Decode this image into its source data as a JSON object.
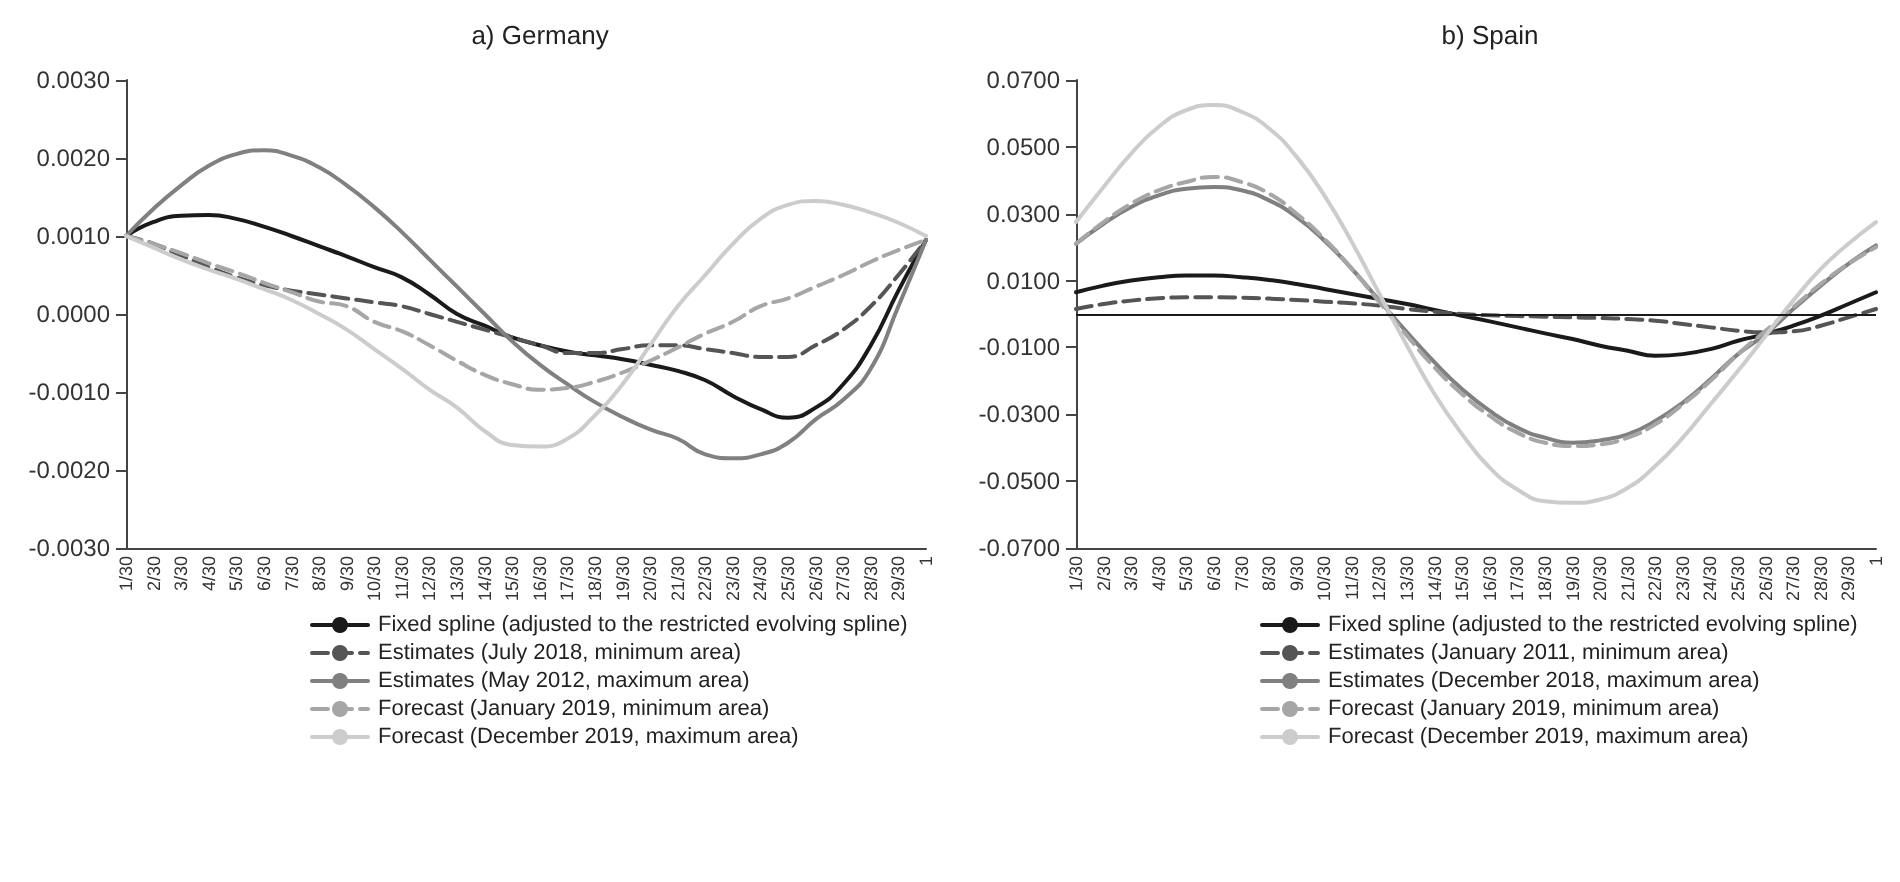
{
  "chart_data": [
    {
      "type": "line",
      "title": "a) Germany",
      "categories": [
        "1/30",
        "2/30",
        "3/30",
        "4/30",
        "5/30",
        "6/30",
        "7/30",
        "8/30",
        "9/30",
        "10/30",
        "11/30",
        "12/30",
        "13/30",
        "14/30",
        "15/30",
        "16/30",
        "17/30",
        "18/30",
        "19/30",
        "20/30",
        "21/30",
        "22/30",
        "23/30",
        "24/30",
        "25/30",
        "26/30",
        "27/30",
        "28/30",
        "29/30",
        "1"
      ],
      "series": [
        {
          "name": "Fixed spline (adjusted to the restricted evolving spline)",
          "color": "#1a1a1a",
          "line_style": "solid",
          "values": [
            0.001,
            0.00118,
            0.00126,
            0.00127,
            0.00122,
            0.00112,
            0.001,
            0.00087,
            0.00074,
            0.0006,
            0.00047,
            0.00025,
            0.0,
            -0.00015,
            -0.0003,
            -0.0004,
            -0.00048,
            -0.00053,
            -0.00058,
            -0.00065,
            -0.00073,
            -0.00085,
            -0.00105,
            -0.00122,
            -0.00133,
            -0.0012,
            -0.0009,
            -0.0004,
            0.0003,
            0.00095
          ]
        },
        {
          "name": "Estimates (July 2018, minimum area)",
          "color": "#555555",
          "line_style": "dashed",
          "values": [
            0.001,
            0.0009,
            0.00075,
            0.0006,
            0.00047,
            0.00037,
            0.0003,
            0.00025,
            0.0002,
            0.00015,
            0.0001,
            0.0,
            -0.0001,
            -0.0002,
            -0.0003,
            -0.0004,
            -0.0005,
            -0.0005,
            -0.00045,
            -0.0004,
            -0.0004,
            -0.00045,
            -0.0005,
            -0.00055,
            -0.00055,
            -0.0004,
            -0.0002,
            0.0001,
            0.0005,
            0.00095
          ]
        },
        {
          "name": "Estimates (May 2012, maximum area)",
          "color": "#808080",
          "line_style": "solid",
          "values": [
            0.001,
            0.00135,
            0.00165,
            0.0019,
            0.00205,
            0.0021,
            0.00203,
            0.00188,
            0.00165,
            0.00137,
            0.00105,
            0.0007,
            0.00035,
            0.0,
            -0.00035,
            -0.00065,
            -0.0009,
            -0.00113,
            -0.00132,
            -0.00148,
            -0.0016,
            -0.0018,
            -0.00185,
            -0.0018,
            -0.00165,
            -0.00135,
            -0.0011,
            -0.0007,
            0.0001,
            0.00095
          ]
        },
        {
          "name": "Forecast (January 2019, minimum area)",
          "color": "#a6a6a6",
          "line_style": "dashed",
          "values": [
            0.001,
            0.0009,
            0.00078,
            0.00065,
            0.00053,
            0.0004,
            0.00028,
            0.00016,
            0.0001,
            -0.0001,
            -0.00022,
            -0.0004,
            -0.0006,
            -0.00078,
            -0.0009,
            -0.00097,
            -0.00095,
            -0.00087,
            -0.00075,
            -0.0006,
            -0.00043,
            -0.00025,
            -0.0001,
            0.0001,
            0.0002,
            0.00035,
            0.0005,
            0.00067,
            0.00082,
            0.00095
          ]
        },
        {
          "name": "Forecast (December 2019, maximum area)",
          "color": "#cccccc",
          "line_style": "solid",
          "values": [
            0.001,
            0.00085,
            0.0007,
            0.00057,
            0.00045,
            0.00032,
            0.00018,
            0.0,
            -0.0002,
            -0.00045,
            -0.0007,
            -0.00097,
            -0.0012,
            -0.0015,
            -0.00168,
            -0.0017,
            -0.0016,
            -0.0013,
            -0.0009,
            -0.0004,
            0.0001,
            0.0005,
            0.0009,
            0.00122,
            0.0014,
            0.00145,
            0.0014,
            0.0013,
            0.00117,
            0.001
          ]
        }
      ],
      "ylim": [
        -0.003,
        0.003
      ],
      "yticks": [
        {
          "value": -0.003,
          "label": "-0.0030"
        },
        {
          "value": -0.002,
          "label": "-0.0020"
        },
        {
          "value": -0.001,
          "label": "-0.0010"
        },
        {
          "value": 0,
          "label": "0.0000"
        },
        {
          "value": 0.001,
          "label": "0.0010"
        },
        {
          "value": 0.002,
          "label": "0.0020"
        },
        {
          "value": 0.003,
          "label": "0.0030"
        }
      ],
      "grid": false,
      "legend": "bottom",
      "marker": "none"
    },
    {
      "type": "line",
      "title": "b) Spain",
      "categories": [
        "1/30",
        "2/30",
        "3/30",
        "4/30",
        "5/30",
        "6/30",
        "7/30",
        "8/30",
        "9/30",
        "10/30",
        "11/30",
        "12/30",
        "13/30",
        "14/30",
        "15/30",
        "16/30",
        "17/30",
        "18/30",
        "19/30",
        "20/30",
        "21/30",
        "22/30",
        "23/30",
        "24/30",
        "25/30",
        "26/30",
        "27/30",
        "28/30",
        "29/30",
        "1"
      ],
      "series": [
        {
          "name": "Fixed spline (adjusted to the restricted evolving spline)",
          "color": "#1a1a1a",
          "line_style": "solid",
          "values": [
            0.0065,
            0.0085,
            0.01,
            0.011,
            0.0115,
            0.0115,
            0.011,
            0.0102,
            0.009,
            0.0075,
            0.006,
            0.0045,
            0.003,
            0.0012,
            -0.0005,
            -0.0022,
            -0.004,
            -0.0058,
            -0.0075,
            -0.0095,
            -0.011,
            -0.0125,
            -0.012,
            -0.0105,
            -0.008,
            -0.006,
            -0.0035,
            -0.0005,
            0.003,
            0.0065
          ]
        },
        {
          "name": "Estimates (January 2011, minimum area)",
          "color": "#555555",
          "line_style": "dashed",
          "values": [
            0.0015,
            0.003,
            0.004,
            0.0047,
            0.005,
            0.005,
            0.0049,
            0.0046,
            0.0042,
            0.0037,
            0.0032,
            0.0025,
            0.0015,
            0.0007,
            0.0,
            -0.0004,
            -0.0006,
            -0.0008,
            -0.001,
            -0.0012,
            -0.0015,
            -0.002,
            -0.003,
            -0.004,
            -0.005,
            -0.0055,
            -0.0052,
            -0.0035,
            -0.001,
            0.0015
          ]
        },
        {
          "name": "Estimates (December 2018, maximum area)",
          "color": "#808080",
          "line_style": "solid",
          "values": [
            0.021,
            0.027,
            0.032,
            0.0355,
            0.0375,
            0.038,
            0.037,
            0.034,
            0.029,
            0.022,
            0.0135,
            0.004,
            -0.0055,
            -0.0145,
            -0.0225,
            -0.029,
            -0.034,
            -0.037,
            -0.0385,
            -0.0378,
            -0.036,
            -0.032,
            -0.0265,
            -0.0195,
            -0.012,
            -0.006,
            0.0015,
            0.0085,
            0.015,
            0.0205
          ]
        },
        {
          "name": "Forecast (January 2019, minimum area)",
          "color": "#a6a6a6",
          "line_style": "dashed",
          "values": [
            0.021,
            0.0275,
            0.033,
            0.037,
            0.0395,
            0.041,
            0.0395,
            0.036,
            0.03,
            0.0225,
            0.0135,
            0.0035,
            -0.0065,
            -0.016,
            -0.024,
            -0.0305,
            -0.0355,
            -0.0385,
            -0.0395,
            -0.039,
            -0.037,
            -0.033,
            -0.027,
            -0.02,
            -0.012,
            -0.005,
            0.002,
            0.009,
            0.015,
            0.02
          ]
        },
        {
          "name": "Forecast (December 2019, maximum area)",
          "color": "#cccccc",
          "line_style": "solid",
          "values": [
            0.0275,
            0.038,
            0.048,
            0.056,
            0.061,
            0.0625,
            0.0605,
            0.0555,
            0.047,
            0.0355,
            0.0215,
            0.006,
            -0.0095,
            -0.024,
            -0.036,
            -0.046,
            -0.0525,
            -0.056,
            -0.0565,
            -0.0555,
            -0.052,
            -0.0455,
            -0.037,
            -0.027,
            -0.017,
            -0.0065,
            0.004,
            0.0135,
            0.021,
            0.0275
          ]
        }
      ],
      "ylim": [
        -0.07,
        0.07
      ],
      "yticks": [
        {
          "value": -0.07,
          "label": "-0.0700"
        },
        {
          "value": -0.05,
          "label": "-0.0500"
        },
        {
          "value": -0.03,
          "label": "-0.0300"
        },
        {
          "value": -0.01,
          "label": "-0.0100"
        },
        {
          "value": 0.01,
          "label": "0.0100"
        },
        {
          "value": 0.03,
          "label": "0.0300"
        },
        {
          "value": 0.05,
          "label": "0.0500"
        },
        {
          "value": 0.07,
          "label": "0.0700"
        }
      ],
      "ref_lines": [
        {
          "axis": "y",
          "value": 0,
          "color": "#1a1a1a"
        }
      ],
      "grid": false,
      "legend": "bottom",
      "marker": "none"
    }
  ]
}
